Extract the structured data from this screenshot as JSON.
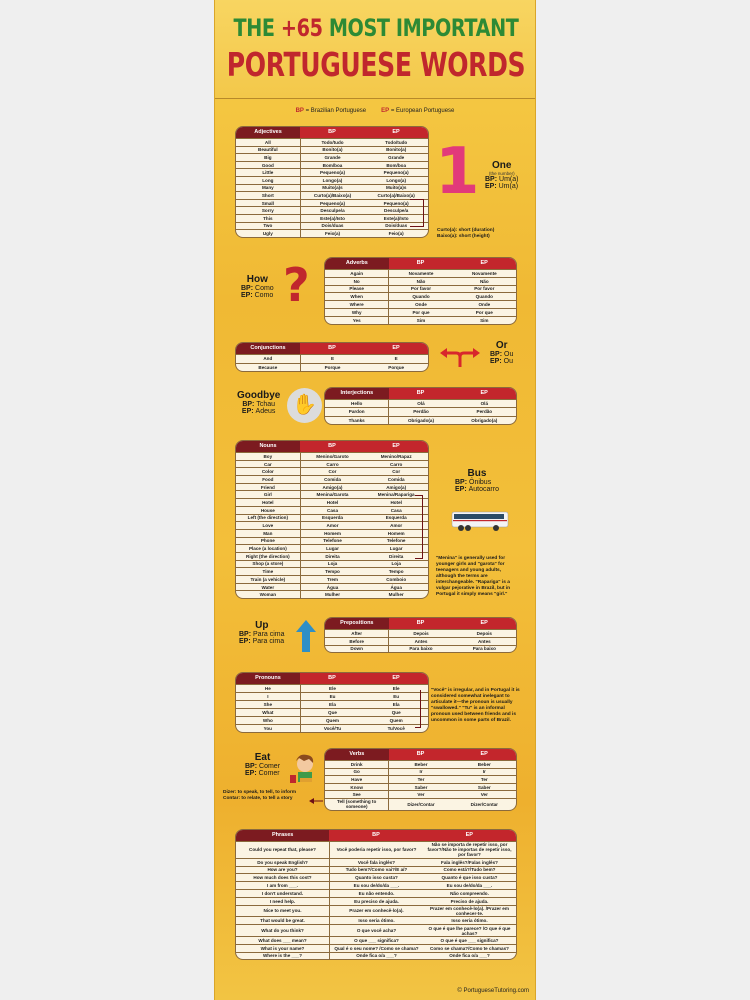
{
  "title": {
    "line1_a": "THE",
    "line1_b": "+65",
    "line1_c": "MOST IMPORTANT",
    "line2": "PORTUGUESE WORDS"
  },
  "legend": {
    "bp": "BP",
    "bp_text": "= Brazilian Portuguese",
    "ep": "EP",
    "ep_text": "= European Portuguese"
  },
  "colors": {
    "header_dark": "#7c1b20",
    "header_red": "#c3262c",
    "title_green": "#2d8a35",
    "background": "#f2c03a"
  },
  "tables": {
    "adjectives": {
      "header": [
        "Adjectives",
        "BP",
        "EP"
      ],
      "rows": [
        [
          "All",
          "Todo/tudo",
          "Todo/tudo"
        ],
        [
          "Beautiful",
          "Bonito(a)",
          "Bonito(a)"
        ],
        [
          "Big",
          "Grande",
          "Grande"
        ],
        [
          "Good",
          "Bom/boa",
          "Bom/boa"
        ],
        [
          "Little",
          "Pequeno(a)",
          "Pequeno(a)"
        ],
        [
          "Long",
          "Longo(a)",
          "Longo(a)"
        ],
        [
          "Many",
          "Muito(a)s",
          "Muito(a)s"
        ],
        [
          "Short",
          "Curto(a)/Baixo(a)",
          "Curto(a)/Baixo(a)"
        ],
        [
          "Small",
          "Pequeno(a)",
          "Pequeno(a)"
        ],
        [
          "Sorry",
          "Desculpe/a",
          "Desculpe/a"
        ],
        [
          "This",
          "Este(a)/Isto",
          "Este(a)/Isto"
        ],
        [
          "Two",
          "Dois/duas",
          "Dois/duas"
        ],
        [
          "Ugly",
          "Feio(a)",
          "Feio(a)"
        ]
      ]
    },
    "adverbs": {
      "header": [
        "Adverbs",
        "BP",
        "EP"
      ],
      "rows": [
        [
          "Again",
          "Novamente",
          "Novamente"
        ],
        [
          "No",
          "Não",
          "Não"
        ],
        [
          "Please",
          "Por favor",
          "Por favor"
        ],
        [
          "When",
          "Quando",
          "Quando"
        ],
        [
          "Where",
          "Onde",
          "Onde"
        ],
        [
          "Why",
          "Por que",
          "Por que"
        ],
        [
          "Yes",
          "Sim",
          "Sim"
        ]
      ]
    },
    "conjunctions": {
      "header": [
        "Conjunctions",
        "BP",
        "EP"
      ],
      "rows": [
        [
          "And",
          "E",
          "E"
        ],
        [
          "Because",
          "Porque",
          "Porque"
        ]
      ]
    },
    "interjections": {
      "header": [
        "Interjections",
        "BP",
        "EP"
      ],
      "rows": [
        [
          "Hello",
          "Olá",
          "Olá"
        ],
        [
          "Pardon",
          "Perdão",
          "Perdão"
        ],
        [
          "Thanks",
          "Obrigado(a)",
          "Obrigado(a)"
        ]
      ]
    },
    "nouns": {
      "header": [
        "Nouns",
        "BP",
        "EP"
      ],
      "rows": [
        [
          "Boy",
          "Menino/Garoto",
          "Menino/Rapaz"
        ],
        [
          "Car",
          "Carro",
          "Carro"
        ],
        [
          "Color",
          "Cor",
          "Cor"
        ],
        [
          "Food",
          "Comida",
          "Comida"
        ],
        [
          "Friend",
          "Amigo(a)",
          "Amigo(a)"
        ],
        [
          "Girl",
          "Menina/Garota",
          "Menina/Rapariga"
        ],
        [
          "Hotel",
          "Hotel",
          "Hotel"
        ],
        [
          "House",
          "Casa",
          "Casa"
        ],
        [
          "Left (the direction)",
          "Esquerda",
          "Esquerda"
        ],
        [
          "Love",
          "Amor",
          "Amor"
        ],
        [
          "Man",
          "Homem",
          "Homem"
        ],
        [
          "Phone",
          "Telefone",
          "Telefone"
        ],
        [
          "Place (a location)",
          "Lugar",
          "Lugar"
        ],
        [
          "Right (the direction)",
          "Direita",
          "Direita"
        ],
        [
          "Shop (a store)",
          "Loja",
          "Loja"
        ],
        [
          "Time",
          "Tempo",
          "Tempo"
        ],
        [
          "Train (a vehicle)",
          "Trem",
          "Comboio"
        ],
        [
          "Water",
          "Água",
          "Água"
        ],
        [
          "Woman",
          "Mulher",
          "Mulher"
        ]
      ]
    },
    "prepositions": {
      "header": [
        "Prepositions",
        "BP",
        "EP"
      ],
      "rows": [
        [
          "After",
          "Depois",
          "Depois"
        ],
        [
          "Before",
          "Antes",
          "Antes"
        ],
        [
          "Down",
          "Para baixo",
          "Para baixo"
        ]
      ]
    },
    "pronouns": {
      "header": [
        "Pronouns",
        "BP",
        "EP"
      ],
      "rows": [
        [
          "He",
          "Ele",
          "Ele"
        ],
        [
          "I",
          "Eu",
          "Eu"
        ],
        [
          "She",
          "Ela",
          "Ela"
        ],
        [
          "What",
          "Que",
          "Que"
        ],
        [
          "Who",
          "Quem",
          "Quem"
        ],
        [
          "You",
          "Você/Tu",
          "Tu/Você"
        ]
      ]
    },
    "verbs": {
      "header": [
        "Verbs",
        "BP",
        "EP"
      ],
      "rows": [
        [
          "Drink",
          "Beber",
          "Beber"
        ],
        [
          "Go",
          "Ir",
          "Ir"
        ],
        [
          "Have",
          "Ter",
          "Ter"
        ],
        [
          "Know",
          "Saber",
          "Saber"
        ],
        [
          "See",
          "Ver",
          "Ver"
        ],
        [
          "Tell (something to someone)",
          "Dizer/Contar",
          "Dizer/Contar"
        ]
      ]
    },
    "phrases": {
      "header": [
        "Phrases",
        "BP",
        "EP"
      ],
      "rows": [
        [
          "Could you repeat that, please?",
          "Você poderia repetir isso, por favor?",
          "Não se importa de repetir isso, por favor?/Não te importas de repetir isso, por favor?"
        ],
        [
          "Do you speak English?",
          "Você fala inglês?",
          "Fala inglês?/Falas inglês?"
        ],
        [
          "How are you?",
          "Tudo bem?/Como vai?/E aí?",
          "Como está?/Tudo bem?"
        ],
        [
          "How much does this cost?",
          "Quanto isso custa?",
          "Quanto é que isso custa?"
        ],
        [
          "I am from ___.",
          "Eu sou de/do/da ___.",
          "Eu sou de/do/da ___."
        ],
        [
          "I don't understand.",
          "Eu não entendo.",
          "Não compreendo."
        ],
        [
          "I need help.",
          "Eu preciso de ajuda.",
          "Preciso de ajuda."
        ],
        [
          "Nice to meet you.",
          "Prazer em conhecê-lo(a).",
          "Prazer em conhecê-lo(a). /Prazer em conhecer-te."
        ],
        [
          "That would be great.",
          "Isso seria ótimo.",
          "Isso seria ótimo."
        ],
        [
          "What do you think?",
          "O que você acha?",
          "O que é que lhe parece? /O que é que achas?"
        ],
        [
          "What does ___ mean?",
          "O que ___ significa?",
          "O que é que ___ significa?"
        ],
        [
          "What is your name?",
          "Qual é o seu nome? /Como se chama?",
          "Como se chama?/Como te chamas?"
        ],
        [
          "Where is the ___?",
          "Onde fica o/a ___?",
          "Onde fica o/a ___?"
        ]
      ]
    }
  },
  "callouts": {
    "one": {
      "number": "1",
      "word": "One",
      "sub": "(the number)",
      "bp": "Um(a)",
      "ep": "Um(a)"
    },
    "how": {
      "word": "How",
      "bp": "Como",
      "ep": "Como"
    },
    "or": {
      "word": "Or",
      "bp": "Ou",
      "ep": "Ou"
    },
    "goodbye": {
      "word": "Goodbye",
      "bp": "Tchau",
      "ep": "Adeus"
    },
    "bus": {
      "word": "Bus",
      "bp": "Ônibus",
      "ep": "Autocarro"
    },
    "up": {
      "word": "Up",
      "bp": "Para cima",
      "ep": "Para cima"
    },
    "eat": {
      "word": "Eat",
      "bp": "Comer",
      "ep": "Comer"
    },
    "bp_label": "BP:",
    "ep_label": "EP:"
  },
  "notes": {
    "short": [
      "Curto(a): short (duration)",
      "Baixo(a): short (height)"
    ],
    "girl": "\"Menina\" is generally used for younger girls and \"garota\" for teenagers and young adults, although the terms are interchangeable. \"Rapariga\" is a vulgar pejorative in Brazil, but in Portugal it simply means \"girl.\"",
    "voce": "\"Você\" is irregular, and in Portugal it is considered somewhat inelegant to articulate it—the pronoun is usually \"swallowed.\" \"Tu\" is an informal pronoun used between friends and is uncommon in some parts of Brazil.",
    "tell": [
      "Dizer:   to speak, to tell, to inform",
      "Contar: to relate, to tell a story"
    ]
  },
  "footer": {
    "copyright": "© PortugueseTutoring.com"
  }
}
